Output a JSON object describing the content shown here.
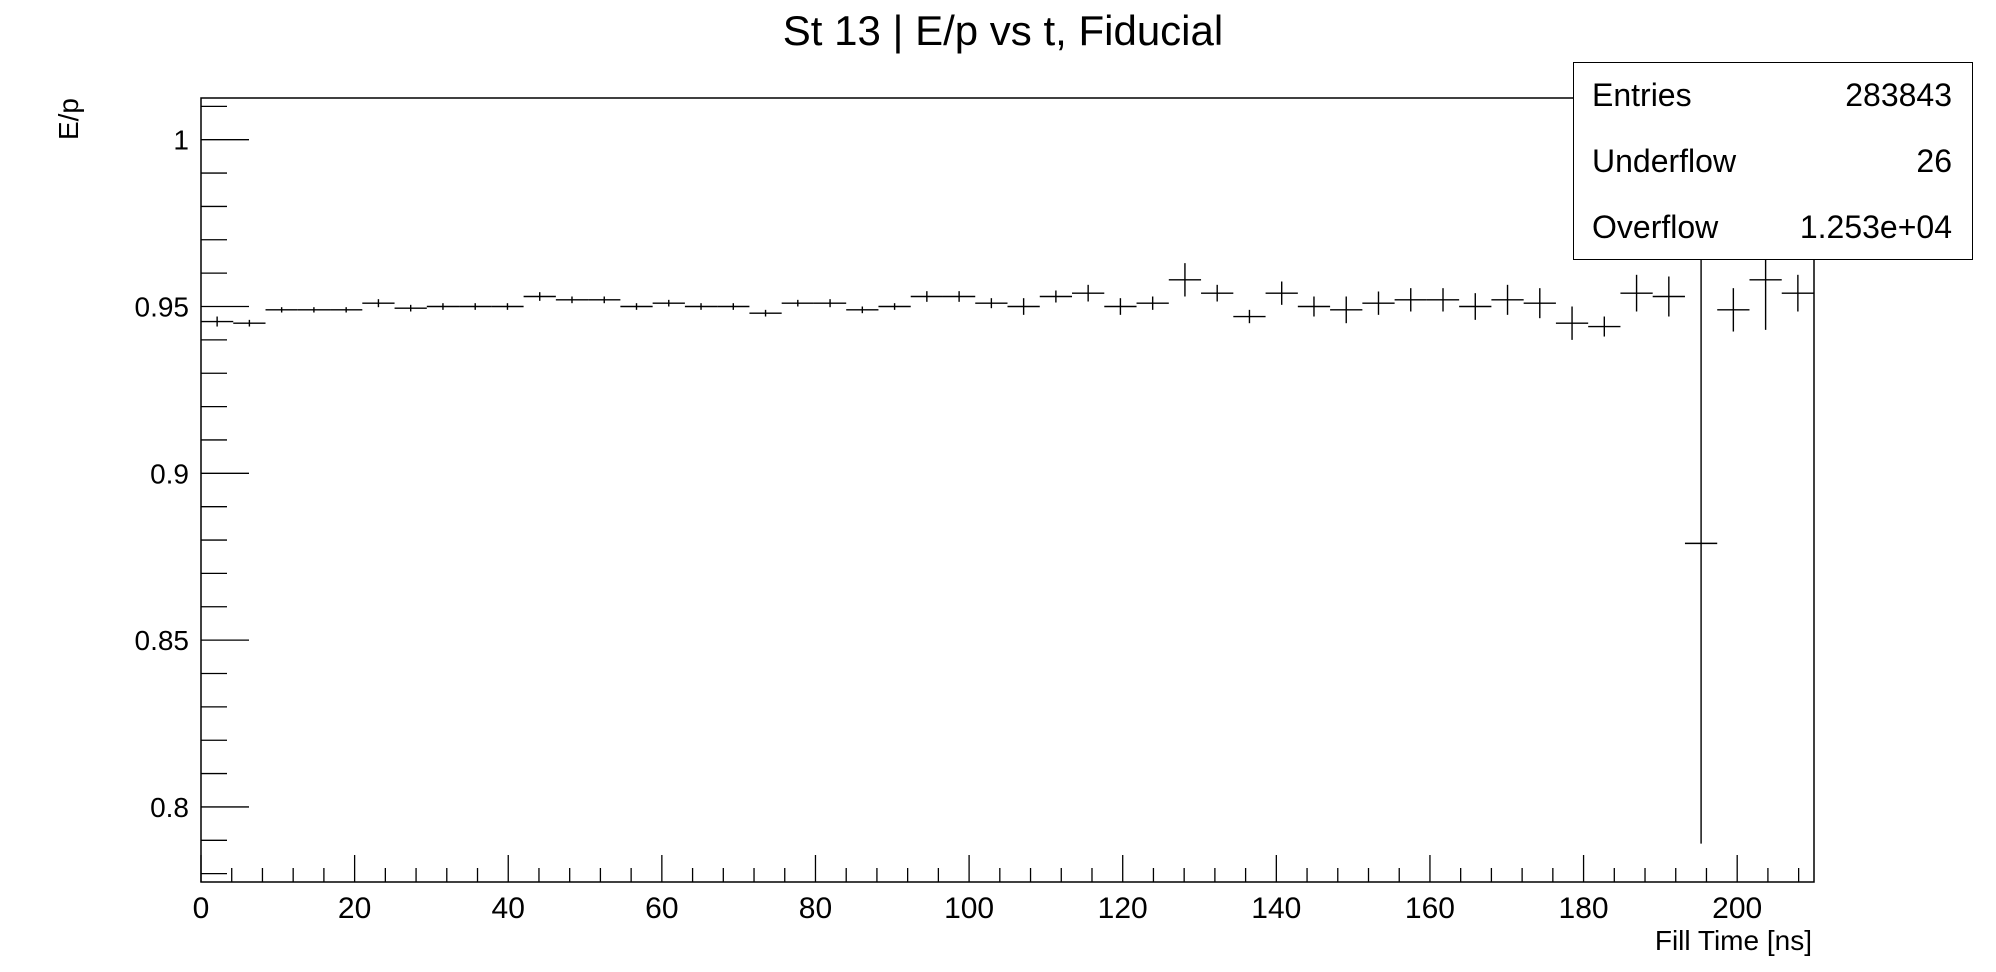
{
  "title": "St 13 | E/p vs t, Fiducial",
  "stats": {
    "entries_label": "Entries",
    "entries_value": "283843",
    "underflow_label": "Underflow",
    "underflow_value": "26",
    "overflow_label": "Overflow",
    "overflow_value": "1.253e+04"
  },
  "chart_data": {
    "type": "scatter",
    "title": "St 13 | E/p vs t, Fiducial",
    "xlabel": "Fill Time [ns]",
    "ylabel": "E/p",
    "xlim": [
      0,
      210
    ],
    "ylim": [
      0.7775,
      1.0125
    ],
    "x_ticks": [
      0,
      20,
      40,
      60,
      80,
      100,
      120,
      140,
      160,
      180,
      200
    ],
    "y_ticks": [
      0.8,
      0.85,
      0.9,
      0.95,
      1
    ],
    "y_tick_labels": [
      "0.8",
      "0.85",
      "0.9",
      "0.95",
      "1"
    ],
    "bin_width": 4.2,
    "series": [
      {
        "x": [
          2.1,
          6.3,
          10.5,
          14.7,
          18.9,
          23.1,
          27.3,
          31.5,
          35.7,
          39.9,
          44.1,
          48.3,
          52.5,
          56.7,
          60.9,
          65.1,
          69.3,
          73.5,
          77.7,
          81.9,
          86.1,
          90.3,
          94.5,
          98.7,
          102.9,
          107.1,
          111.3,
          115.5,
          119.7,
          123.9,
          128.1,
          132.3,
          136.5,
          140.7,
          144.9,
          149.1,
          153.3,
          157.5,
          161.7,
          165.9,
          170.1,
          174.3,
          178.5,
          182.7,
          186.9,
          191.1,
          195.3,
          199.5,
          203.7,
          207.9
        ],
        "y": [
          0.9455,
          0.945,
          0.949,
          0.949,
          0.949,
          0.951,
          0.9495,
          0.95,
          0.95,
          0.95,
          0.953,
          0.952,
          0.952,
          0.95,
          0.951,
          0.95,
          0.95,
          0.948,
          0.951,
          0.951,
          0.949,
          0.95,
          0.953,
          0.953,
          0.951,
          0.95,
          0.953,
          0.954,
          0.95,
          0.951,
          0.958,
          0.954,
          0.947,
          0.954,
          0.95,
          0.949,
          0.951,
          0.952,
          0.952,
          0.95,
          0.952,
          0.951,
          0.945,
          0.944,
          0.954,
          0.953,
          0.879,
          0.949,
          0.958,
          0.954
        ],
        "yerr": [
          0.0015,
          0.001,
          0.0008,
          0.0008,
          0.0008,
          0.0012,
          0.001,
          0.001,
          0.001,
          0.001,
          0.0013,
          0.001,
          0.001,
          0.001,
          0.001,
          0.001,
          0.001,
          0.001,
          0.001,
          0.0012,
          0.001,
          0.001,
          0.0016,
          0.0016,
          0.0015,
          0.0025,
          0.0018,
          0.0025,
          0.0025,
          0.002,
          0.005,
          0.0025,
          0.002,
          0.0035,
          0.003,
          0.004,
          0.0035,
          0.0035,
          0.0035,
          0.004,
          0.0045,
          0.0045,
          0.005,
          0.003,
          0.0055,
          0.006,
          0.09,
          0.0065,
          0.015,
          0.0055
        ]
      }
    ]
  }
}
